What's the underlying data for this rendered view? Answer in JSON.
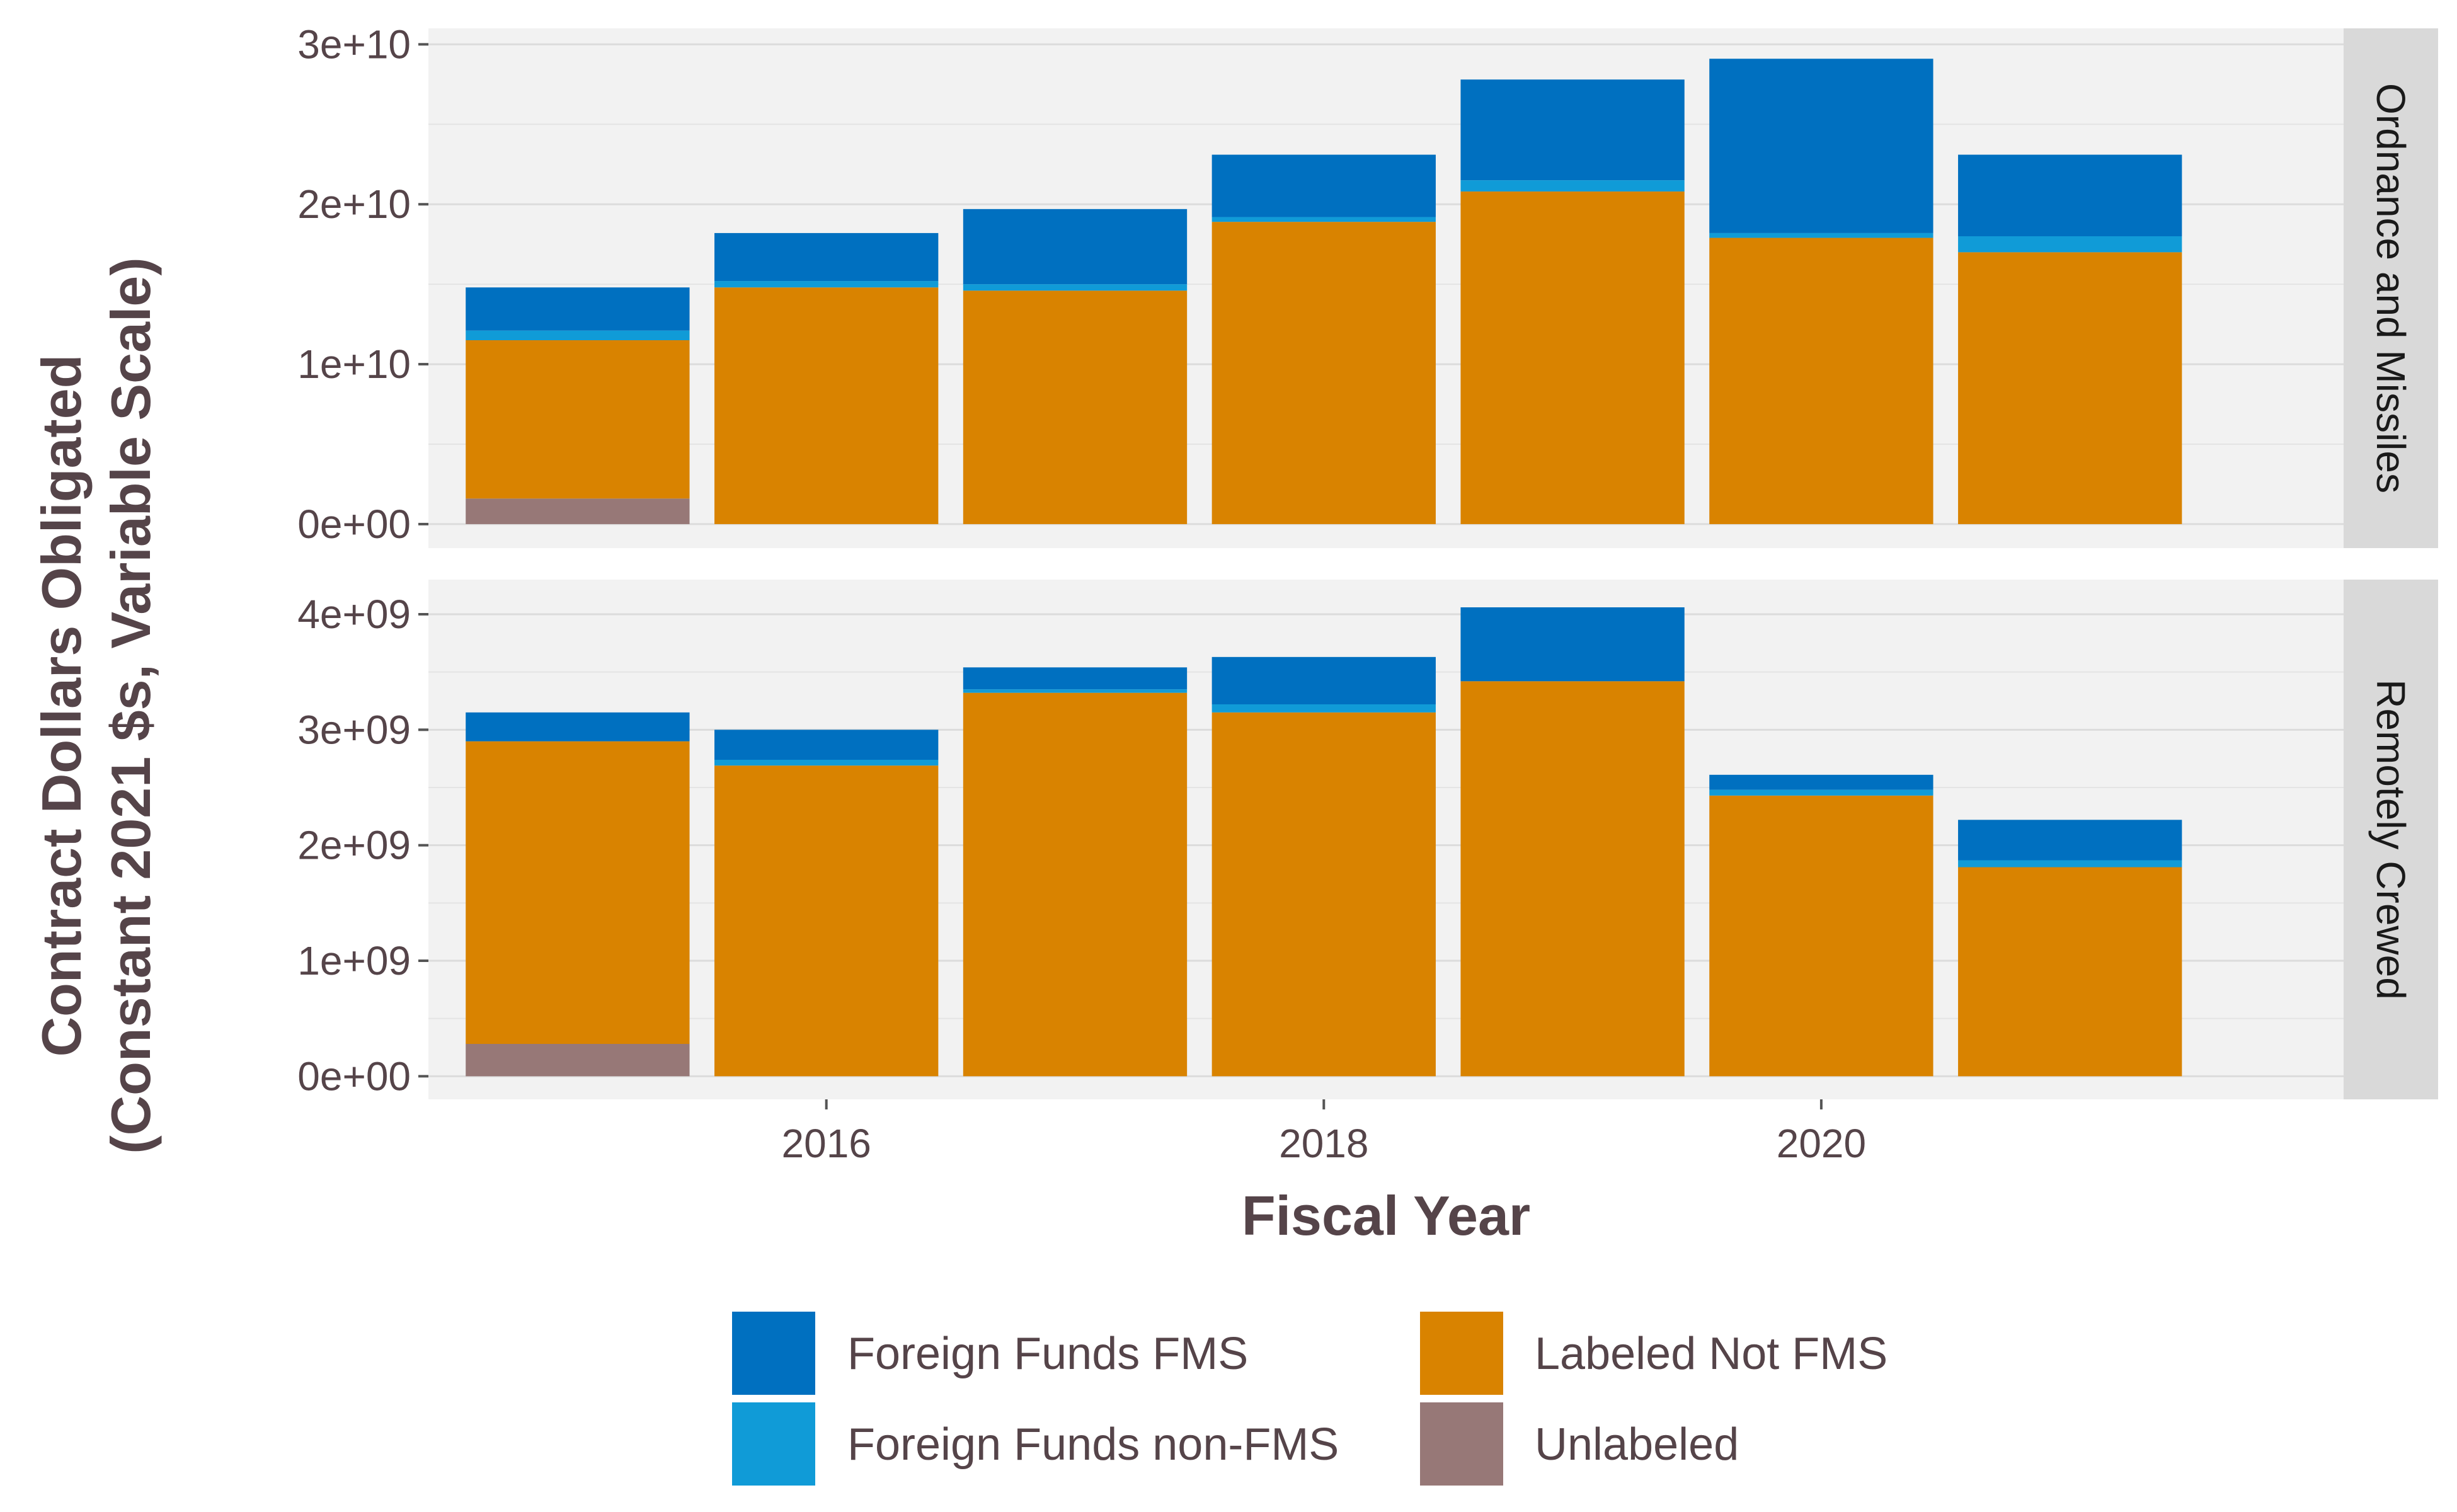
{
  "chart_data": {
    "type": "bar",
    "stacked": true,
    "xlabel": "Fiscal Year",
    "ylabel_lines": [
      "Contract Dollars Obligated",
      "(Constant 2021 $s, Variable Scale)"
    ],
    "x": [
      2015,
      2016,
      2017,
      2018,
      2019,
      2020,
      2021
    ],
    "x_ticks": [
      2016,
      2018,
      2020
    ],
    "x_tick_labels": [
      "2016",
      "2018",
      "2020"
    ],
    "xlim": [
      2014.4,
      2022.1
    ],
    "grid": true,
    "legend_position": "bottom",
    "legend": [
      {
        "name": "Foreign Funds FMS",
        "color": "#0070C0"
      },
      {
        "name": "Foreign Funds non-FMS",
        "color": "#109BD7"
      },
      {
        "name": "Labeled Not FMS",
        "color": "#D98300"
      },
      {
        "name": "Unlabeled",
        "color": "#977877"
      }
    ],
    "stack_order": [
      "Unlabeled",
      "Labeled Not FMS",
      "Foreign Funds non-FMS",
      "Foreign Funds FMS"
    ],
    "panels": [
      {
        "strip": "Ordnance and Missiles",
        "ylim": [
          -1500000000,
          31000000000
        ],
        "y_ticks": [
          0,
          10000000000,
          20000000000,
          30000000000
        ],
        "y_tick_labels": [
          "0e+00",
          "1e+10",
          "2e+10",
          "3e+10"
        ],
        "series": [
          {
            "name": "Unlabeled",
            "values": [
              1600000000,
              0,
              0,
              0,
              0,
              0,
              0
            ]
          },
          {
            "name": "Labeled Not FMS",
            "values": [
              9900000000,
              14800000000,
              14600000000,
              18900000000,
              20800000000,
              17900000000,
              17000000000
            ]
          },
          {
            "name": "Foreign Funds non-FMS",
            "values": [
              600000000,
              400000000,
              400000000,
              300000000,
              700000000,
              300000000,
              1000000000
            ]
          },
          {
            "name": "Foreign Funds FMS",
            "values": [
              2700000000,
              3000000000,
              4700000000,
              3900000000,
              6300000000,
              10900000000,
              5100000000
            ]
          }
        ]
      },
      {
        "strip": "Remotely Crewed",
        "ylim": [
          -200000000,
          4300000000
        ],
        "y_ticks": [
          0,
          1000000000,
          2000000000,
          3000000000,
          4000000000
        ],
        "y_tick_labels": [
          "0e+00",
          "1e+09",
          "2e+09",
          "3e+09",
          "4e+09"
        ],
        "series": [
          {
            "name": "Unlabeled",
            "values": [
              280000000,
              0,
              0,
              0,
              0,
              0,
              0
            ]
          },
          {
            "name": "Labeled Not FMS",
            "values": [
              2620000000,
              2690000000,
              3320000000,
              3150000000,
              3420000000,
              2430000000,
              1810000000
            ]
          },
          {
            "name": "Foreign Funds non-FMS",
            "values": [
              0,
              50000000,
              30000000,
              70000000,
              0,
              50000000,
              60000000
            ]
          },
          {
            "name": "Foreign Funds FMS",
            "values": [
              250000000,
              260000000,
              190000000,
              410000000,
              640000000,
              130000000,
              350000000
            ]
          }
        ]
      }
    ]
  }
}
